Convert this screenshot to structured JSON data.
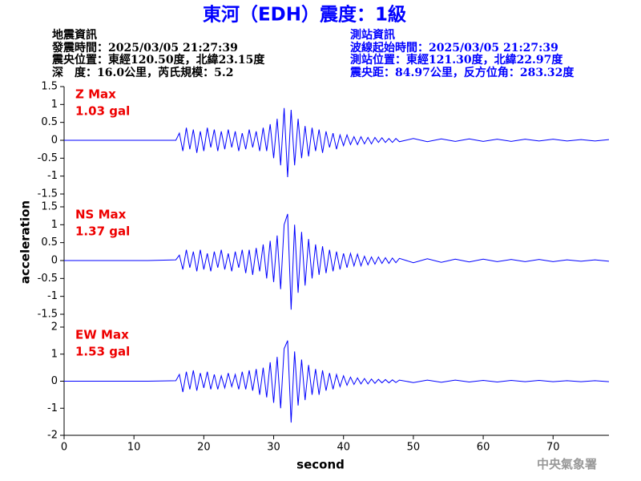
{
  "header": {
    "title": "東河（EDH）震度：1級",
    "left_info": [
      "地震資訊",
      "發震時間：2025/03/05 21:27:39",
      "震央位置：東經120.50度，北緯23.15度",
      "深　度：16.0公里，芮氏規模：5.2"
    ],
    "right_info": [
      "測站資訊",
      "波線起始時間：2025/03/05 21:27:39",
      "測站位置：東經121.30度，北緯22.97度",
      "震央距：84.97公里，反方位角：283.32度"
    ],
    "y_label": "acceleration",
    "x_label": "second",
    "watermark": "中央氣象署"
  },
  "chart_data": [
    {
      "type": "line",
      "label": [
        "Z Max",
        "1.03 gal"
      ],
      "color": "#0000ff",
      "xlim": [
        0,
        78
      ],
      "ylim": [
        -1.5,
        1.5
      ],
      "yticks": [
        -1.5,
        -1,
        -0.5,
        0,
        0.5,
        1,
        1.5
      ],
      "x": [
        0,
        4,
        8,
        12,
        16,
        16.5,
        17,
        17.5,
        18,
        18.5,
        19,
        19.5,
        20,
        20.5,
        21,
        21.5,
        22,
        22.5,
        23,
        23.5,
        24,
        24.5,
        25,
        25.5,
        26,
        26.5,
        27,
        27.5,
        28,
        28.5,
        29,
        29.5,
        30,
        30.5,
        31,
        31.5,
        32,
        32.5,
        33,
        33.5,
        34,
        34.5,
        35,
        35.5,
        36,
        36.5,
        37,
        37.5,
        38,
        38.5,
        39,
        39.5,
        40,
        40.5,
        41,
        41.5,
        42,
        42.5,
        43,
        43.5,
        44,
        44.5,
        45,
        45.5,
        46,
        46.5,
        47,
        47.5,
        48,
        50,
        52,
        54,
        56,
        58,
        60,
        62,
        64,
        66,
        68,
        70,
        72,
        74,
        76,
        78
      ],
      "values": [
        0,
        0,
        0,
        0,
        0,
        0.2,
        -0.3,
        0.35,
        -0.25,
        0.3,
        -0.35,
        0.25,
        -0.3,
        0.35,
        -0.2,
        0.3,
        -0.3,
        0.25,
        -0.25,
        0.3,
        -0.2,
        0.25,
        -0.3,
        0.2,
        -0.25,
        0.3,
        -0.2,
        0.25,
        -0.3,
        0.35,
        -0.3,
        0.45,
        -0.5,
        0.6,
        -0.7,
        0.9,
        -1.03,
        0.85,
        -0.7,
        0.6,
        -0.5,
        0.4,
        -0.45,
        0.35,
        -0.3,
        0.3,
        -0.35,
        0.25,
        -0.2,
        0.2,
        -0.25,
        0.15,
        -0.15,
        0.15,
        -0.12,
        0.1,
        -0.12,
        0.1,
        -0.1,
        0.08,
        -0.1,
        0.08,
        -0.06,
        0.07,
        -0.06,
        0.05,
        -0.06,
        0.05,
        -0.04,
        0.05,
        -0.04,
        0.04,
        -0.03,
        0.04,
        -0.03,
        0.03,
        -0.03,
        0.03,
        -0.02,
        0.03,
        -0.02,
        0.02,
        -0.02,
        0.02
      ]
    },
    {
      "type": "line",
      "label": [
        "NS Max",
        "1.37 gal"
      ],
      "color": "#0000ff",
      "xlim": [
        0,
        78
      ],
      "ylim": [
        -1.5,
        1.5
      ],
      "yticks": [
        -1.5,
        -1,
        -0.5,
        0,
        0.5,
        1,
        1.5
      ],
      "x": [
        0,
        4,
        8,
        12,
        16,
        16.5,
        17,
        17.5,
        18,
        18.5,
        19,
        19.5,
        20,
        20.5,
        21,
        21.5,
        22,
        22.5,
        23,
        23.5,
        24,
        24.5,
        25,
        25.5,
        26,
        26.5,
        27,
        27.5,
        28,
        28.5,
        29,
        29.5,
        30,
        30.5,
        31,
        31.5,
        32,
        32.5,
        33,
        33.5,
        34,
        34.5,
        35,
        35.5,
        36,
        36.5,
        37,
        37.5,
        38,
        38.5,
        39,
        39.5,
        40,
        40.5,
        41,
        41.5,
        42,
        42.5,
        43,
        43.5,
        44,
        44.5,
        45,
        45.5,
        46,
        46.5,
        47,
        47.5,
        48,
        50,
        52,
        54,
        56,
        58,
        60,
        62,
        64,
        66,
        68,
        70,
        72,
        74,
        76,
        78
      ],
      "values": [
        0,
        0,
        0,
        0,
        0.02,
        0.15,
        -0.25,
        0.3,
        -0.2,
        0.25,
        -0.3,
        0.3,
        -0.25,
        0.2,
        -0.3,
        0.25,
        -0.2,
        0.3,
        -0.25,
        0.2,
        -0.3,
        0.25,
        -0.2,
        0.3,
        -0.35,
        0.3,
        -0.4,
        0.35,
        -0.3,
        0.45,
        -0.5,
        0.55,
        -0.6,
        0.7,
        -0.8,
        1.0,
        1.3,
        -1.37,
        1.0,
        -0.9,
        0.8,
        -0.7,
        0.6,
        -0.5,
        0.45,
        -0.4,
        0.4,
        -0.35,
        0.3,
        -0.3,
        0.25,
        -0.25,
        0.2,
        -0.2,
        0.2,
        -0.15,
        0.18,
        -0.15,
        0.12,
        -0.12,
        0.1,
        -0.1,
        0.1,
        -0.08,
        0.08,
        -0.08,
        0.07,
        -0.06,
        0.06,
        -0.06,
        0.05,
        -0.05,
        0.04,
        -0.04,
        0.04,
        -0.03,
        0.03,
        -0.03,
        0.03,
        -0.03,
        0.02,
        -0.02,
        0.02,
        -0.02
      ]
    },
    {
      "type": "line",
      "label": [
        "EW Max",
        "1.53 gal"
      ],
      "color": "#0000ff",
      "xlim": [
        0,
        78
      ],
      "ylim": [
        -2,
        2
      ],
      "yticks": [
        -2,
        -1,
        0,
        1,
        2
      ],
      "xticks": [
        0,
        10,
        20,
        30,
        40,
        50,
        60,
        70
      ],
      "x": [
        0,
        4,
        8,
        12,
        16,
        16.5,
        17,
        17.5,
        18,
        18.5,
        19,
        19.5,
        20,
        20.5,
        21,
        21.5,
        22,
        22.5,
        23,
        23.5,
        24,
        24.5,
        25,
        25.5,
        26,
        26.5,
        27,
        27.5,
        28,
        28.5,
        29,
        29.5,
        30,
        30.5,
        31,
        31.5,
        32,
        32.5,
        33,
        33.5,
        34,
        34.5,
        35,
        35.5,
        36,
        36.5,
        37,
        37.5,
        38,
        38.5,
        39,
        39.5,
        40,
        40.5,
        41,
        41.5,
        42,
        42.5,
        43,
        43.5,
        44,
        44.5,
        45,
        45.5,
        46,
        46.5,
        47,
        47.5,
        48,
        50,
        52,
        54,
        56,
        58,
        60,
        62,
        64,
        66,
        68,
        70,
        72,
        74,
        76,
        78
      ],
      "values": [
        0,
        0,
        0,
        0,
        0.02,
        0.25,
        -0.4,
        0.35,
        -0.3,
        0.4,
        -0.35,
        0.3,
        -0.25,
        0.35,
        -0.3,
        0.25,
        -0.3,
        0.2,
        -0.25,
        0.3,
        -0.2,
        0.25,
        -0.3,
        0.35,
        -0.3,
        0.4,
        -0.35,
        0.45,
        -0.5,
        0.5,
        -0.6,
        0.7,
        -0.8,
        0.9,
        -1.0,
        1.2,
        1.5,
        -1.53,
        1.1,
        -0.9,
        0.8,
        -0.7,
        0.6,
        -0.5,
        0.45,
        -0.5,
        0.4,
        -0.35,
        0.3,
        -0.3,
        0.25,
        -0.2,
        0.2,
        -0.15,
        0.15,
        -0.12,
        0.12,
        -0.1,
        0.1,
        -0.1,
        0.08,
        -0.08,
        0.07,
        -0.06,
        0.06,
        -0.06,
        0.05,
        -0.05,
        0.04,
        -0.05,
        0.04,
        -0.04,
        0.04,
        -0.03,
        0.03,
        -0.03,
        0.03,
        -0.02,
        0.03,
        -0.02,
        0.02,
        -0.02,
        0.02,
        -0.02
      ]
    }
  ]
}
